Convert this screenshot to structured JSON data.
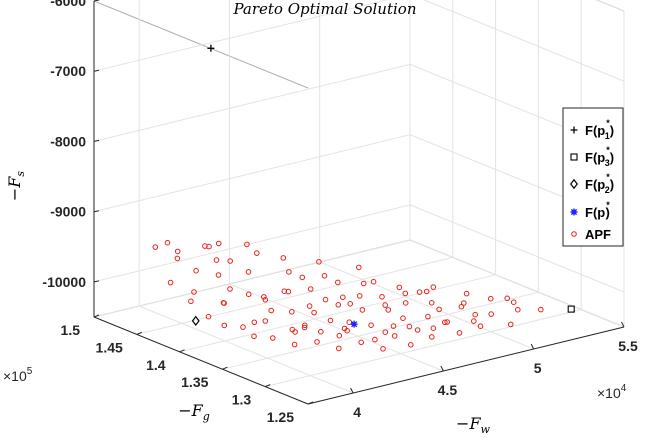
{
  "chart_data": {
    "type": "scatter3d",
    "title": "Pareto  Optimal  Solution",
    "axes": {
      "x": {
        "label": "−F_w",
        "label_main": "−F",
        "label_sub": "w",
        "range": [
          37500,
          55000
        ],
        "ticks": [
          40000,
          45000,
          50000,
          55000
        ],
        "tick_labels": [
          "4",
          "4.5",
          "5",
          "5.5"
        ],
        "multiplier": "×10",
        "multiplier_exp": "4"
      },
      "y": {
        "label": "−F_g",
        "label_main": "−F",
        "label_sub": "g",
        "range": [
          125000,
          150000
        ],
        "ticks": [
          125000,
          130000,
          135000,
          140000,
          145000,
          150000
        ],
        "tick_labels": [
          "1.25",
          "1.3",
          "1.35",
          "1.4",
          "1.45",
          "1.5"
        ],
        "multiplier": "×10",
        "multiplier_exp": "5"
      },
      "z": {
        "label": "−F_s",
        "label_main": "−F",
        "label_sub": "s",
        "range": [
          -10500,
          -6000
        ],
        "ticks": [
          -10000,
          -9000,
          -8000,
          -7000,
          -6000
        ],
        "tick_labels": [
          "-10000",
          "-9000",
          "-8000",
          "-7000",
          "-6000"
        ]
      }
    },
    "grid": true,
    "legend_position": "right",
    "series": [
      {
        "name": "F(p_1^*)",
        "label_main": "F(p",
        "label_sub": "1",
        "label_tail": ")",
        "marker": "plus",
        "color": "#000000",
        "points": [
          [
            43500,
            149000,
            -7000
          ]
        ]
      },
      {
        "name": "F(p_3^*)",
        "label_main": "F(p",
        "label_sub": "3",
        "label_tail": ")",
        "marker": "square",
        "color": "#000000",
        "points": [
          [
            53500,
            128000,
            -10300
          ]
        ]
      },
      {
        "name": "F(p_2^*)",
        "label_main": "F(p",
        "label_sub": "2",
        "label_tail": ")",
        "marker": "diamond",
        "color": "#000000",
        "points": [
          [
            39200,
            141700,
            -10250
          ]
        ]
      },
      {
        "name": "F(p^*)",
        "label_main": "F(p",
        "label_sub": "",
        "label_tail": ")",
        "marker": "asterisk",
        "color": "#1f1fff",
        "points": [
          [
            44700,
            134800,
            -10300
          ]
        ]
      },
      {
        "name": "APF",
        "label_main": "APF",
        "label_sub": "",
        "label_tail": "",
        "marker": "circle",
        "color": "#e8221b",
        "points": [
          [
            39000,
            146000,
            -9400
          ],
          [
            40000,
            145500,
            -9500
          ],
          [
            41500,
            145000,
            -9500
          ],
          [
            38800,
            143000,
            -9400
          ],
          [
            39600,
            142500,
            -9600
          ],
          [
            40600,
            142000,
            -9700
          ],
          [
            41200,
            143500,
            -9600
          ],
          [
            42200,
            144000,
            -9700
          ],
          [
            43200,
            143000,
            -9600
          ],
          [
            38600,
            141000,
            -9900
          ],
          [
            39100,
            140000,
            -10100
          ],
          [
            40200,
            140500,
            -10000
          ],
          [
            41000,
            141500,
            -9900
          ],
          [
            41800,
            141000,
            -10000
          ],
          [
            42400,
            140500,
            -10050
          ],
          [
            43300,
            140000,
            -10000
          ],
          [
            44000,
            141000,
            -10100
          ],
          [
            45000,
            140500,
            -10100
          ],
          [
            39500,
            139000,
            -10200
          ],
          [
            40300,
            138500,
            -10250
          ],
          [
            41300,
            138000,
            -10200
          ],
          [
            42100,
            139000,
            -10150
          ],
          [
            43000,
            138500,
            -10200
          ],
          [
            44000,
            138000,
            -10250
          ],
          [
            45200,
            139200,
            -10200
          ],
          [
            46000,
            138000,
            -10250
          ],
          [
            47000,
            139000,
            -10250
          ],
          [
            48000,
            138500,
            -10300
          ],
          [
            40200,
            137000,
            -10300
          ],
          [
            41000,
            136500,
            -10350
          ],
          [
            42000,
            136000,
            -10300
          ],
          [
            43000,
            137000,
            -10350
          ],
          [
            44200,
            136500,
            -10300
          ],
          [
            45000,
            136000,
            -10350
          ],
          [
            46200,
            137000,
            -10300
          ],
          [
            47400,
            136500,
            -10350
          ],
          [
            48600,
            137000,
            -10350
          ],
          [
            49800,
            136500,
            -10400
          ],
          [
            41500,
            135000,
            -10400
          ],
          [
            42500,
            134500,
            -10400
          ],
          [
            43500,
            134000,
            -10350
          ],
          [
            44500,
            135200,
            -10400
          ],
          [
            45500,
            134500,
            -10350
          ],
          [
            46500,
            134000,
            -10400
          ],
          [
            47500,
            135000,
            -10400
          ],
          [
            48500,
            134200,
            -10400
          ],
          [
            49500,
            135000,
            -10400
          ],
          [
            50500,
            134500,
            -10400
          ],
          [
            43000,
            133000,
            -10450
          ],
          [
            44000,
            132500,
            -10400
          ],
          [
            45000,
            133000,
            -10450
          ],
          [
            46000,
            132800,
            -10450
          ],
          [
            47000,
            133200,
            -10400
          ],
          [
            48000,
            132500,
            -10450
          ],
          [
            49000,
            133000,
            -10450
          ],
          [
            50000,
            132000,
            -10450
          ],
          [
            51200,
            132500,
            -10450
          ],
          [
            52200,
            131500,
            -10400
          ],
          [
            44500,
            131000,
            -10450
          ],
          [
            45800,
            130500,
            -10450
          ],
          [
            47200,
            131000,
            -10450
          ],
          [
            48500,
            130500,
            -10450
          ],
          [
            49800,
            130800,
            -10450
          ],
          [
            51000,
            129800,
            -10450
          ],
          [
            39200,
            145000,
            -9300
          ],
          [
            40800,
            144000,
            -9400
          ],
          [
            42500,
            142500,
            -9800
          ],
          [
            44500,
            142000,
            -9900
          ],
          [
            46000,
            141000,
            -10000
          ],
          [
            38900,
            144000,
            -9800
          ],
          [
            40100,
            143800,
            -10000
          ],
          [
            41400,
            139500,
            -10300
          ],
          [
            42700,
            137800,
            -10400
          ],
          [
            43800,
            136800,
            -10450
          ],
          [
            45400,
            137600,
            -10100
          ],
          [
            46800,
            135600,
            -10200
          ],
          [
            48200,
            136200,
            -10150
          ],
          [
            50000,
            137500,
            -10300
          ],
          [
            51500,
            136000,
            -10350
          ],
          [
            52800,
            134000,
            -10400
          ],
          [
            44200,
            139800,
            -9850
          ],
          [
            45600,
            138600,
            -9950
          ],
          [
            47200,
            137800,
            -10000
          ],
          [
            48800,
            135800,
            -10150
          ],
          [
            50300,
            133800,
            -10300
          ],
          [
            41800,
            144500,
            -9450
          ],
          [
            43600,
            145000,
            -9600
          ],
          [
            44900,
            143500,
            -9800
          ],
          [
            46400,
            142500,
            -9900
          ],
          [
            47900,
            141000,
            -10000
          ],
          [
            40500,
            141200,
            -10050
          ],
          [
            43100,
            141800,
            -10200
          ],
          [
            44700,
            140000,
            -10300
          ],
          [
            46100,
            139600,
            -10350
          ],
          [
            47600,
            139800,
            -10150
          ],
          [
            49100,
            138800,
            -10250
          ],
          [
            50600,
            138000,
            -10300
          ],
          [
            42300,
            135500,
            -10200
          ],
          [
            43700,
            133800,
            -10250
          ],
          [
            45100,
            132000,
            -10300
          ],
          [
            46700,
            131600,
            -10350
          ],
          [
            48300,
            131800,
            -10350
          ],
          [
            49700,
            131200,
            -10300
          ],
          [
            51600,
            133400,
            -10300
          ],
          [
            52400,
            132400,
            -10350
          ],
          [
            53000,
            130500,
            -10400
          ]
        ]
      }
    ]
  }
}
